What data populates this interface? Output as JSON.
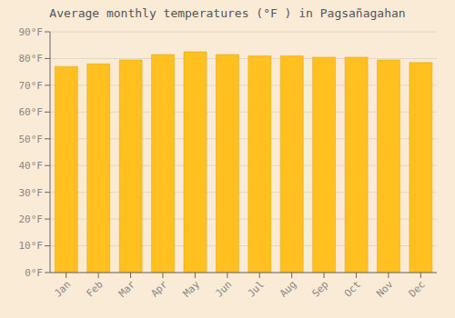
{
  "chart_data": {
    "type": "bar",
    "title": "Average monthly temperatures (°F ) in Pagsañagahan",
    "categories": [
      "Jan",
      "Feb",
      "Mar",
      "Apr",
      "May",
      "Jun",
      "Jul",
      "Aug",
      "Sep",
      "Oct",
      "Nov",
      "Dec"
    ],
    "values": [
      77.0,
      78.0,
      79.5,
      81.5,
      82.5,
      81.5,
      81.0,
      81.0,
      80.5,
      80.5,
      79.5,
      78.5
    ],
    "color": "#FFC020",
    "ylim": [
      0,
      90
    ],
    "yticks": [
      {
        "value": 0,
        "label": "0°F"
      },
      {
        "value": 10,
        "label": "10°F"
      },
      {
        "value": 20,
        "label": "20°F"
      },
      {
        "value": 30,
        "label": "30°F"
      },
      {
        "value": 40,
        "label": "40°F"
      },
      {
        "value": 50,
        "label": "50°F"
      },
      {
        "value": 60,
        "label": "60°F"
      },
      {
        "value": 70,
        "label": "70°F"
      },
      {
        "value": 80,
        "label": "80°F"
      },
      {
        "value": 90,
        "label": "90°F"
      }
    ],
    "grid": true
  }
}
